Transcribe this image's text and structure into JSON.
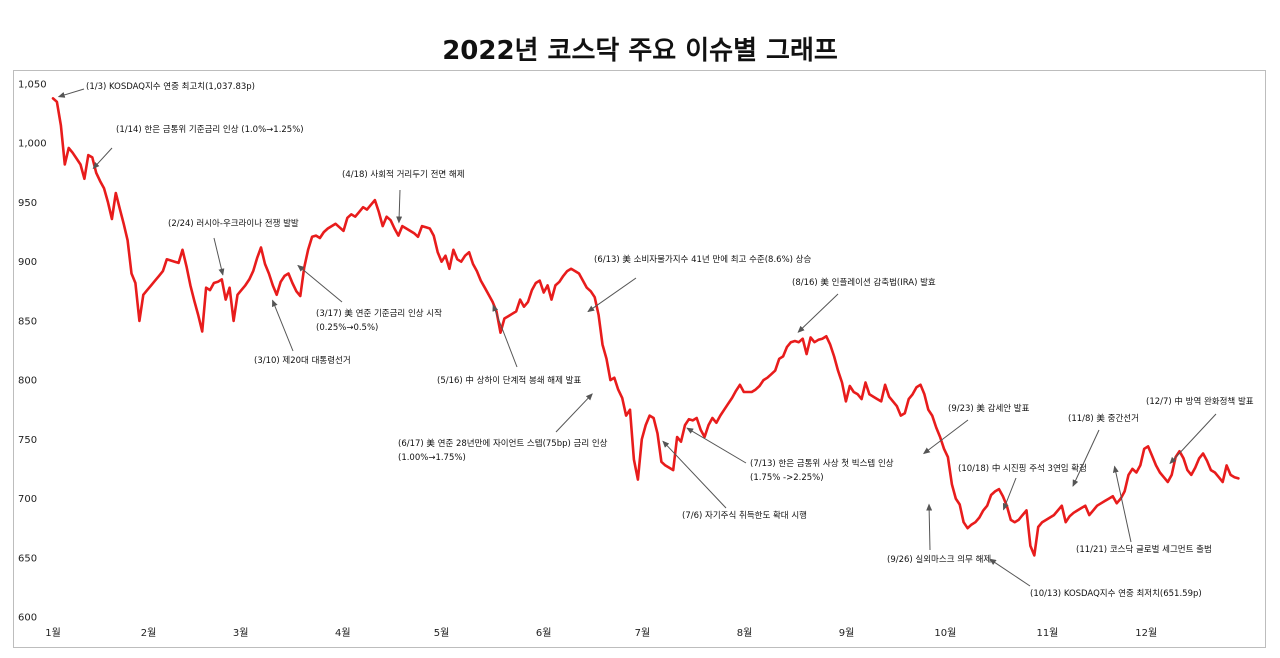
{
  "title": "2022년 코스닥 주요 이슈별 그래프",
  "colors": {
    "line": "#e81c1c",
    "arrow": "#555555",
    "axis": "#bdbdbd"
  },
  "chart_data": {
    "type": "line",
    "title": "2022년 코스닥 주요 이슈별 그래프",
    "ylim": [
      600,
      1050
    ],
    "yticks": [
      "600",
      "650",
      "700",
      "750",
      "800",
      "850",
      "900",
      "950",
      "1,000",
      "1,050"
    ],
    "ytick_values": [
      600,
      650,
      700,
      750,
      800,
      850,
      900,
      950,
      1000,
      1050
    ],
    "xticks": [
      "1월",
      "2월",
      "3월",
      "4월",
      "5월",
      "6월",
      "7월",
      "8월",
      "9월",
      "10월",
      "11월",
      "12월"
    ],
    "x_start": "2022-01-03",
    "x_end": "2022-12-29",
    "grid": false,
    "series": [
      {
        "values": [
          1037.83,
          1035,
          1015,
          982,
          996,
          992,
          987,
          982,
          970,
          990,
          988,
          975,
          968,
          962,
          950,
          936,
          958,
          945,
          932,
          918,
          890,
          882,
          850,
          872,
          876,
          880,
          884,
          888,
          892,
          902,
          901,
          900,
          899,
          910,
          896,
          880,
          867,
          855,
          841,
          878,
          876,
          882,
          883,
          885,
          868,
          878,
          850,
          872,
          876,
          880,
          885,
          892,
          903,
          912,
          898,
          890,
          880,
          872,
          883,
          888,
          890,
          882,
          875,
          871,
          895,
          910,
          921,
          922,
          920,
          925,
          928,
          930,
          932,
          929,
          926,
          937,
          940,
          938,
          942,
          946,
          944,
          948,
          952,
          942,
          930,
          938,
          935,
          928,
          922,
          930,
          928,
          926,
          924,
          921,
          930,
          929,
          928,
          922,
          908,
          900,
          905,
          894,
          910,
          902,
          900,
          905,
          908,
          898,
          892,
          884,
          878,
          872,
          866,
          858,
          840,
          852,
          854,
          856,
          858,
          868,
          862,
          866,
          876,
          882,
          884,
          874,
          880,
          868,
          880,
          883,
          888,
          892,
          894,
          892,
          890,
          884,
          878,
          875,
          870,
          855,
          830,
          818,
          800,
          802,
          792,
          785,
          770,
          775,
          733,
          716,
          750,
          762,
          770,
          768,
          755,
          731,
          728,
          726,
          724,
          752,
          748,
          762,
          767,
          766,
          768,
          758,
          752,
          762,
          768,
          764,
          770,
          775,
          780,
          785,
          791,
          796,
          790,
          790,
          790,
          792,
          795,
          800,
          802,
          805,
          808,
          818,
          820,
          828,
          832,
          833,
          832,
          835,
          822,
          836,
          832,
          834,
          835,
          837,
          830,
          820,
          808,
          798,
          782,
          795,
          790,
          788,
          784,
          798,
          788,
          786,
          784,
          782,
          796,
          786,
          782,
          778,
          770,
          772,
          784,
          788,
          794,
          796,
          788,
          775,
          770,
          760,
          752,
          742,
          735,
          712,
          700,
          695,
          680,
          675,
          678,
          680,
          684,
          690,
          694,
          703,
          706,
          708,
          702,
          694,
          682,
          680,
          682,
          686,
          690,
          660,
          652,
          676,
          680,
          682,
          684,
          686,
          690,
          694,
          680,
          685,
          688,
          690,
          692,
          694,
          686,
          690,
          694,
          696,
          698,
          700,
          702,
          696,
          700,
          706,
          720,
          725,
          722,
          728,
          742,
          744,
          736,
          728,
          722,
          718,
          714,
          720,
          735,
          740,
          734,
          724,
          720,
          726,
          734,
          738,
          732,
          724,
          722,
          718,
          714,
          728,
          720,
          718,
          717
        ]
      }
    ],
    "annotations": [
      {
        "text": "(1/3) KOSDAQ지수 연중 최고치(1,037.83p)",
        "date": "2022-01-03",
        "value": 1037.83
      },
      {
        "text": "(1/14) 한은 금통위 기준금리 인상 (1.0%→1.25%)",
        "date": "2022-01-14",
        "value": 975
      },
      {
        "text": "(2/24) 러시아-우크라이나 전쟁 발발",
        "date": "2022-02-24",
        "value": 884
      },
      {
        "text": "(3/10) 제20대 대통령선거",
        "date": "2022-03-10",
        "value": 872
      },
      {
        "text": "(3/17) 美 연준 기준금리 인상 시작",
        "text2": "(0.25%→0.5%)",
        "date": "2022-03-17",
        "value": 900
      },
      {
        "text": "(4/18) 사회적 거리두기 전면 해제",
        "date": "2022-04-18",
        "value": 928
      },
      {
        "text": "(5/16) 中 상하이 단계적 봉쇄 해제 발표",
        "date": "2022-05-16",
        "value": 868
      },
      {
        "text": "(6/13) 美 소비자물가지수 41년 만에 최고 수준(8.6%) 상승",
        "date": "2022-06-13",
        "value": 855
      },
      {
        "text": "(6/17) 美 연준 28년만에 자이언트 스텝(75bp) 금리 인상",
        "text2": "(1.00%→1.75%)",
        "date": "2022-06-17",
        "value": 792
      },
      {
        "text": "(7/6) 자기주식 취득한도 확대 시행",
        "date": "2022-07-06",
        "value": 752
      },
      {
        "text": "(7/13) 한은 금통위 사상 첫 빅스텝 인상",
        "text2": "(1.75% ->2.25%)",
        "date": "2022-07-13",
        "value": 762
      },
      {
        "text": "(8/16) 美 인플레이션 감축법(IRA) 발효",
        "date": "2022-08-16",
        "value": 837
      },
      {
        "text": "(9/23) 美 감세안 발표",
        "date": "2022-09-23",
        "value": 735
      },
      {
        "text": "(9/26) 실외마스크 의무 해제",
        "date": "2022-09-26",
        "value": 700
      },
      {
        "text": "(10/13) KOSDAQ지수 연중 최저치(651.59p)",
        "date": "2022-10-13",
        "value": 651.59
      },
      {
        "text": "(10/18) 中 시진핑 주석 3연임 확정",
        "date": "2022-10-18",
        "value": 686
      },
      {
        "text": "(11/8) 美 중간선거",
        "date": "2022-11-08",
        "value": 706
      },
      {
        "text": "(11/21) 코스닥 글로벌 세그먼트 출범",
        "date": "2022-11-21",
        "value": 732
      },
      {
        "text": "(12/7) 中 방역 완화정책 발표",
        "date": "2022-12-07",
        "value": 726
      }
    ]
  }
}
